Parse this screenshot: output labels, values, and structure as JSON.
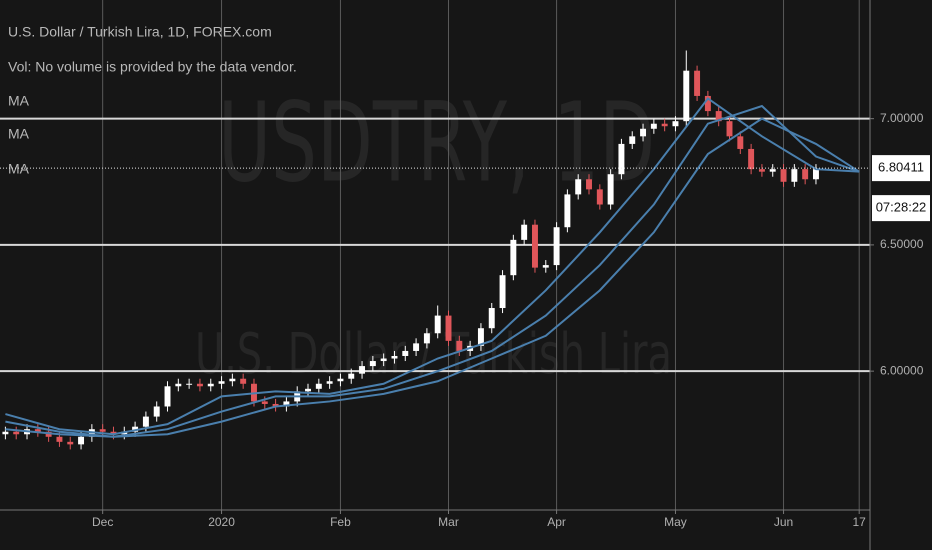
{
  "chart_data": {
    "type": "candlestick",
    "title": "U.S. Dollar / Turkish Lira, 1D, FOREX.com",
    "subtitle": "Vol: No volume is provided by the data vendor.",
    "watermark": [
      "USDTRY, 1D",
      "U.S. Dollar / Turkish Lira"
    ],
    "up_color": "#ffffff",
    "down_color": "#e0565a",
    "open": [
      5.75,
      5.76,
      5.75,
      5.77,
      5.76,
      5.74,
      5.72,
      5.71,
      5.74,
      5.77,
      5.76,
      5.75,
      5.76,
      5.78,
      5.82,
      5.86,
      5.94,
      5.95,
      5.95,
      5.94,
      5.95,
      5.96,
      5.97,
      5.95,
      5.88,
      5.87,
      5.86,
      5.88,
      5.92,
      5.93,
      5.95,
      5.96,
      5.97,
      5.99,
      6.02,
      6.04,
      6.05,
      6.06,
      6.08,
      6.11,
      6.15,
      6.22,
      6.12,
      6.08,
      6.1,
      6.17,
      6.25,
      6.38,
      6.52,
      6.58,
      6.41,
      6.42,
      6.57,
      6.7,
      6.76,
      6.72,
      6.66,
      6.78,
      6.9,
      6.93,
      6.96,
      6.98,
      6.97,
      6.99,
      7.19,
      7.09,
      7.03,
      6.99,
      6.93,
      6.88,
      6.8,
      6.79,
      6.8,
      6.75,
      6.8,
      6.76
    ],
    "high": [
      5.78,
      5.78,
      5.79,
      5.79,
      5.78,
      5.76,
      5.74,
      5.76,
      5.79,
      5.79,
      5.78,
      5.78,
      5.8,
      5.84,
      5.88,
      5.96,
      5.97,
      5.97,
      5.97,
      5.97,
      5.98,
      5.99,
      5.99,
      5.97,
      5.9,
      5.89,
      5.9,
      5.94,
      5.95,
      5.97,
      5.98,
      5.99,
      6.01,
      6.04,
      6.06,
      6.07,
      6.08,
      6.1,
      6.13,
      6.17,
      6.26,
      6.24,
      6.14,
      6.12,
      6.19,
      6.27,
      6.4,
      6.54,
      6.6,
      6.6,
      6.44,
      6.59,
      6.72,
      6.78,
      6.78,
      6.74,
      6.8,
      6.92,
      6.95,
      6.98,
      7.0,
      7.0,
      7.01,
      7.27,
      7.21,
      7.11,
      7.05,
      7.01,
      6.95,
      6.9,
      6.82,
      6.82,
      6.82,
      6.82,
      6.82,
      6.82
    ],
    "low": [
      5.73,
      5.73,
      5.73,
      5.74,
      5.72,
      5.7,
      5.69,
      5.69,
      5.72,
      5.74,
      5.73,
      5.73,
      5.74,
      5.76,
      5.8,
      5.84,
      5.92,
      5.93,
      5.92,
      5.92,
      5.93,
      5.94,
      5.93,
      5.86,
      5.85,
      5.84,
      5.84,
      5.86,
      5.9,
      5.91,
      5.93,
      5.94,
      5.95,
      5.97,
      6.0,
      6.02,
      6.03,
      6.04,
      6.06,
      6.09,
      6.13,
      6.1,
      6.06,
      6.06,
      6.08,
      6.15,
      6.23,
      6.36,
      6.5,
      6.39,
      6.39,
      6.4,
      6.55,
      6.68,
      6.7,
      6.64,
      6.64,
      6.76,
      6.88,
      6.91,
      6.94,
      6.95,
      6.95,
      6.97,
      7.07,
      7.01,
      6.97,
      6.91,
      6.86,
      6.78,
      6.77,
      6.77,
      6.73,
      6.73,
      6.74,
      6.74
    ],
    "close": [
      5.76,
      5.75,
      5.77,
      5.76,
      5.74,
      5.72,
      5.71,
      5.74,
      5.77,
      5.76,
      5.75,
      5.76,
      5.78,
      5.82,
      5.86,
      5.94,
      5.95,
      5.95,
      5.94,
      5.95,
      5.96,
      5.97,
      5.95,
      5.88,
      5.87,
      5.86,
      5.88,
      5.92,
      5.93,
      5.95,
      5.96,
      5.97,
      5.99,
      6.02,
      6.04,
      6.05,
      6.06,
      6.08,
      6.11,
      6.15,
      6.22,
      6.12,
      6.08,
      6.1,
      6.17,
      6.25,
      6.38,
      6.52,
      6.58,
      6.41,
      6.42,
      6.57,
      6.7,
      6.76,
      6.72,
      6.66,
      6.78,
      6.9,
      6.93,
      6.96,
      6.98,
      6.97,
      6.99,
      7.19,
      7.09,
      7.03,
      6.99,
      6.93,
      6.88,
      6.8,
      6.79,
      6.8,
      6.75,
      6.8,
      6.76,
      6.8
    ],
    "series": [
      {
        "name": "MA",
        "color": "#4a7fad",
        "x": [
          0,
          5,
          10,
          15,
          20,
          25,
          30,
          35,
          40,
          45,
          50,
          55,
          60,
          65,
          70,
          75,
          79
        ],
        "values": [
          5.83,
          5.77,
          5.75,
          5.79,
          5.9,
          5.92,
          5.91,
          5.95,
          6.05,
          6.12,
          6.32,
          6.55,
          6.8,
          7.08,
          6.93,
          6.8,
          6.79
        ]
      },
      {
        "name": "MA",
        "color": "#4a7fad",
        "x": [
          0,
          5,
          10,
          15,
          20,
          25,
          30,
          35,
          40,
          45,
          50,
          55,
          60,
          65,
          70,
          75,
          79
        ],
        "values": [
          5.8,
          5.76,
          5.74,
          5.77,
          5.84,
          5.9,
          5.9,
          5.93,
          6.0,
          6.08,
          6.22,
          6.42,
          6.66,
          6.98,
          7.05,
          6.85,
          6.79
        ]
      },
      {
        "name": "MA",
        "color": "#4a7fad",
        "x": [
          0,
          5,
          10,
          15,
          20,
          25,
          30,
          35,
          40,
          45,
          50,
          55,
          60,
          65,
          70,
          75,
          79
        ],
        "values": [
          5.77,
          5.75,
          5.74,
          5.75,
          5.8,
          5.86,
          5.88,
          5.91,
          5.96,
          6.05,
          6.14,
          6.32,
          6.55,
          6.86,
          7.0,
          6.9,
          6.79
        ]
      }
    ],
    "xlim": [
      -0.5,
      80
    ],
    "xticks": [
      {
        "value": 9,
        "label": "Dec"
      },
      {
        "value": 20,
        "label": "2020"
      },
      {
        "value": 31,
        "label": "Feb"
      },
      {
        "value": 41,
        "label": "Mar"
      },
      {
        "value": 51,
        "label": "Apr"
      },
      {
        "value": 62,
        "label": "May"
      },
      {
        "value": 72,
        "label": "Jun"
      },
      {
        "value": 79,
        "label": "17"
      }
    ],
    "ylim": [
      5.45,
      7.47
    ],
    "yticks": [
      {
        "value": 6,
        "label": "6.00000"
      },
      {
        "value": 6.5,
        "label": "6.50000"
      },
      {
        "value": 7,
        "label": "7.00000"
      }
    ],
    "grid": true,
    "last_price": 6.80411,
    "countdown": "07:28:22"
  }
}
